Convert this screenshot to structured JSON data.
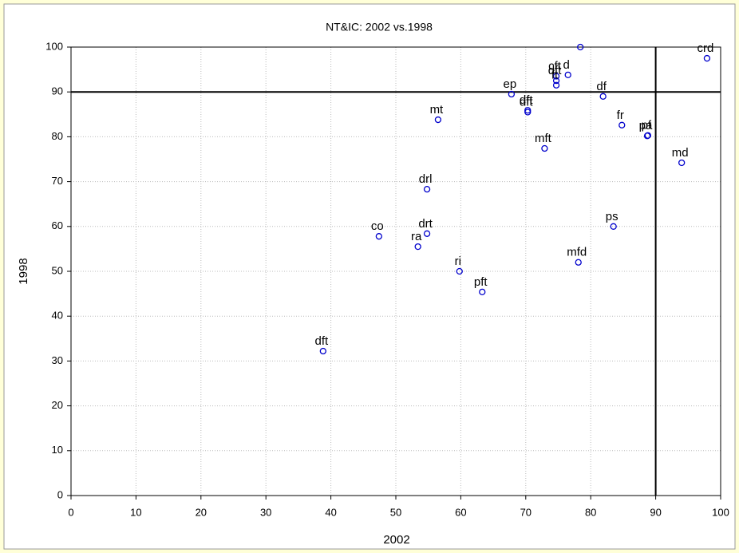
{
  "chart_data": {
    "type": "scatter",
    "title": "NT&IC: 2002 vs.1998",
    "xlabel": "2002",
    "ylabel": "1998",
    "xlim": [
      0,
      100
    ],
    "ylim": [
      0,
      100
    ],
    "xticks": [
      0,
      10,
      20,
      30,
      40,
      50,
      60,
      70,
      80,
      90,
      100
    ],
    "yticks": [
      0,
      10,
      20,
      30,
      40,
      50,
      60,
      70,
      80,
      90,
      100
    ],
    "grid": true,
    "reference_lines": {
      "x": 90,
      "y": 90
    },
    "series": [
      {
        "color": "#0000cc",
        "x": [
          38.8,
          47.4,
          53.4,
          54.8,
          54.8,
          56.5,
          59.8,
          63.3,
          67.8,
          70.3,
          70.3,
          72.9,
          74.7,
          74.7,
          74.7,
          76.5,
          78.4,
          78.1,
          81.9,
          84.8,
          83.5,
          88.7,
          88.8,
          94.0,
          97.9
        ],
        "values": [
          32.2,
          57.8,
          55.5,
          58.4,
          68.3,
          83.8,
          50.0,
          45.4,
          89.5,
          85.9,
          85.5,
          77.4,
          93.5,
          92.5,
          91.5,
          93.8,
          100,
          52.0,
          89.0,
          82.6,
          60.0,
          80.2,
          80.3,
          74.2,
          97.5
        ],
        "labels": [
          "dft",
          "co",
          "ra",
          "drt",
          "drl",
          "mt",
          "ri",
          "pft",
          "ep",
          "dft",
          "dft",
          "mft",
          "cft",
          "dft",
          "ft",
          "d",
          null,
          "mfd",
          "df",
          "fr",
          "ps",
          "pa",
          "pf",
          "md",
          "crd"
        ]
      }
    ]
  }
}
